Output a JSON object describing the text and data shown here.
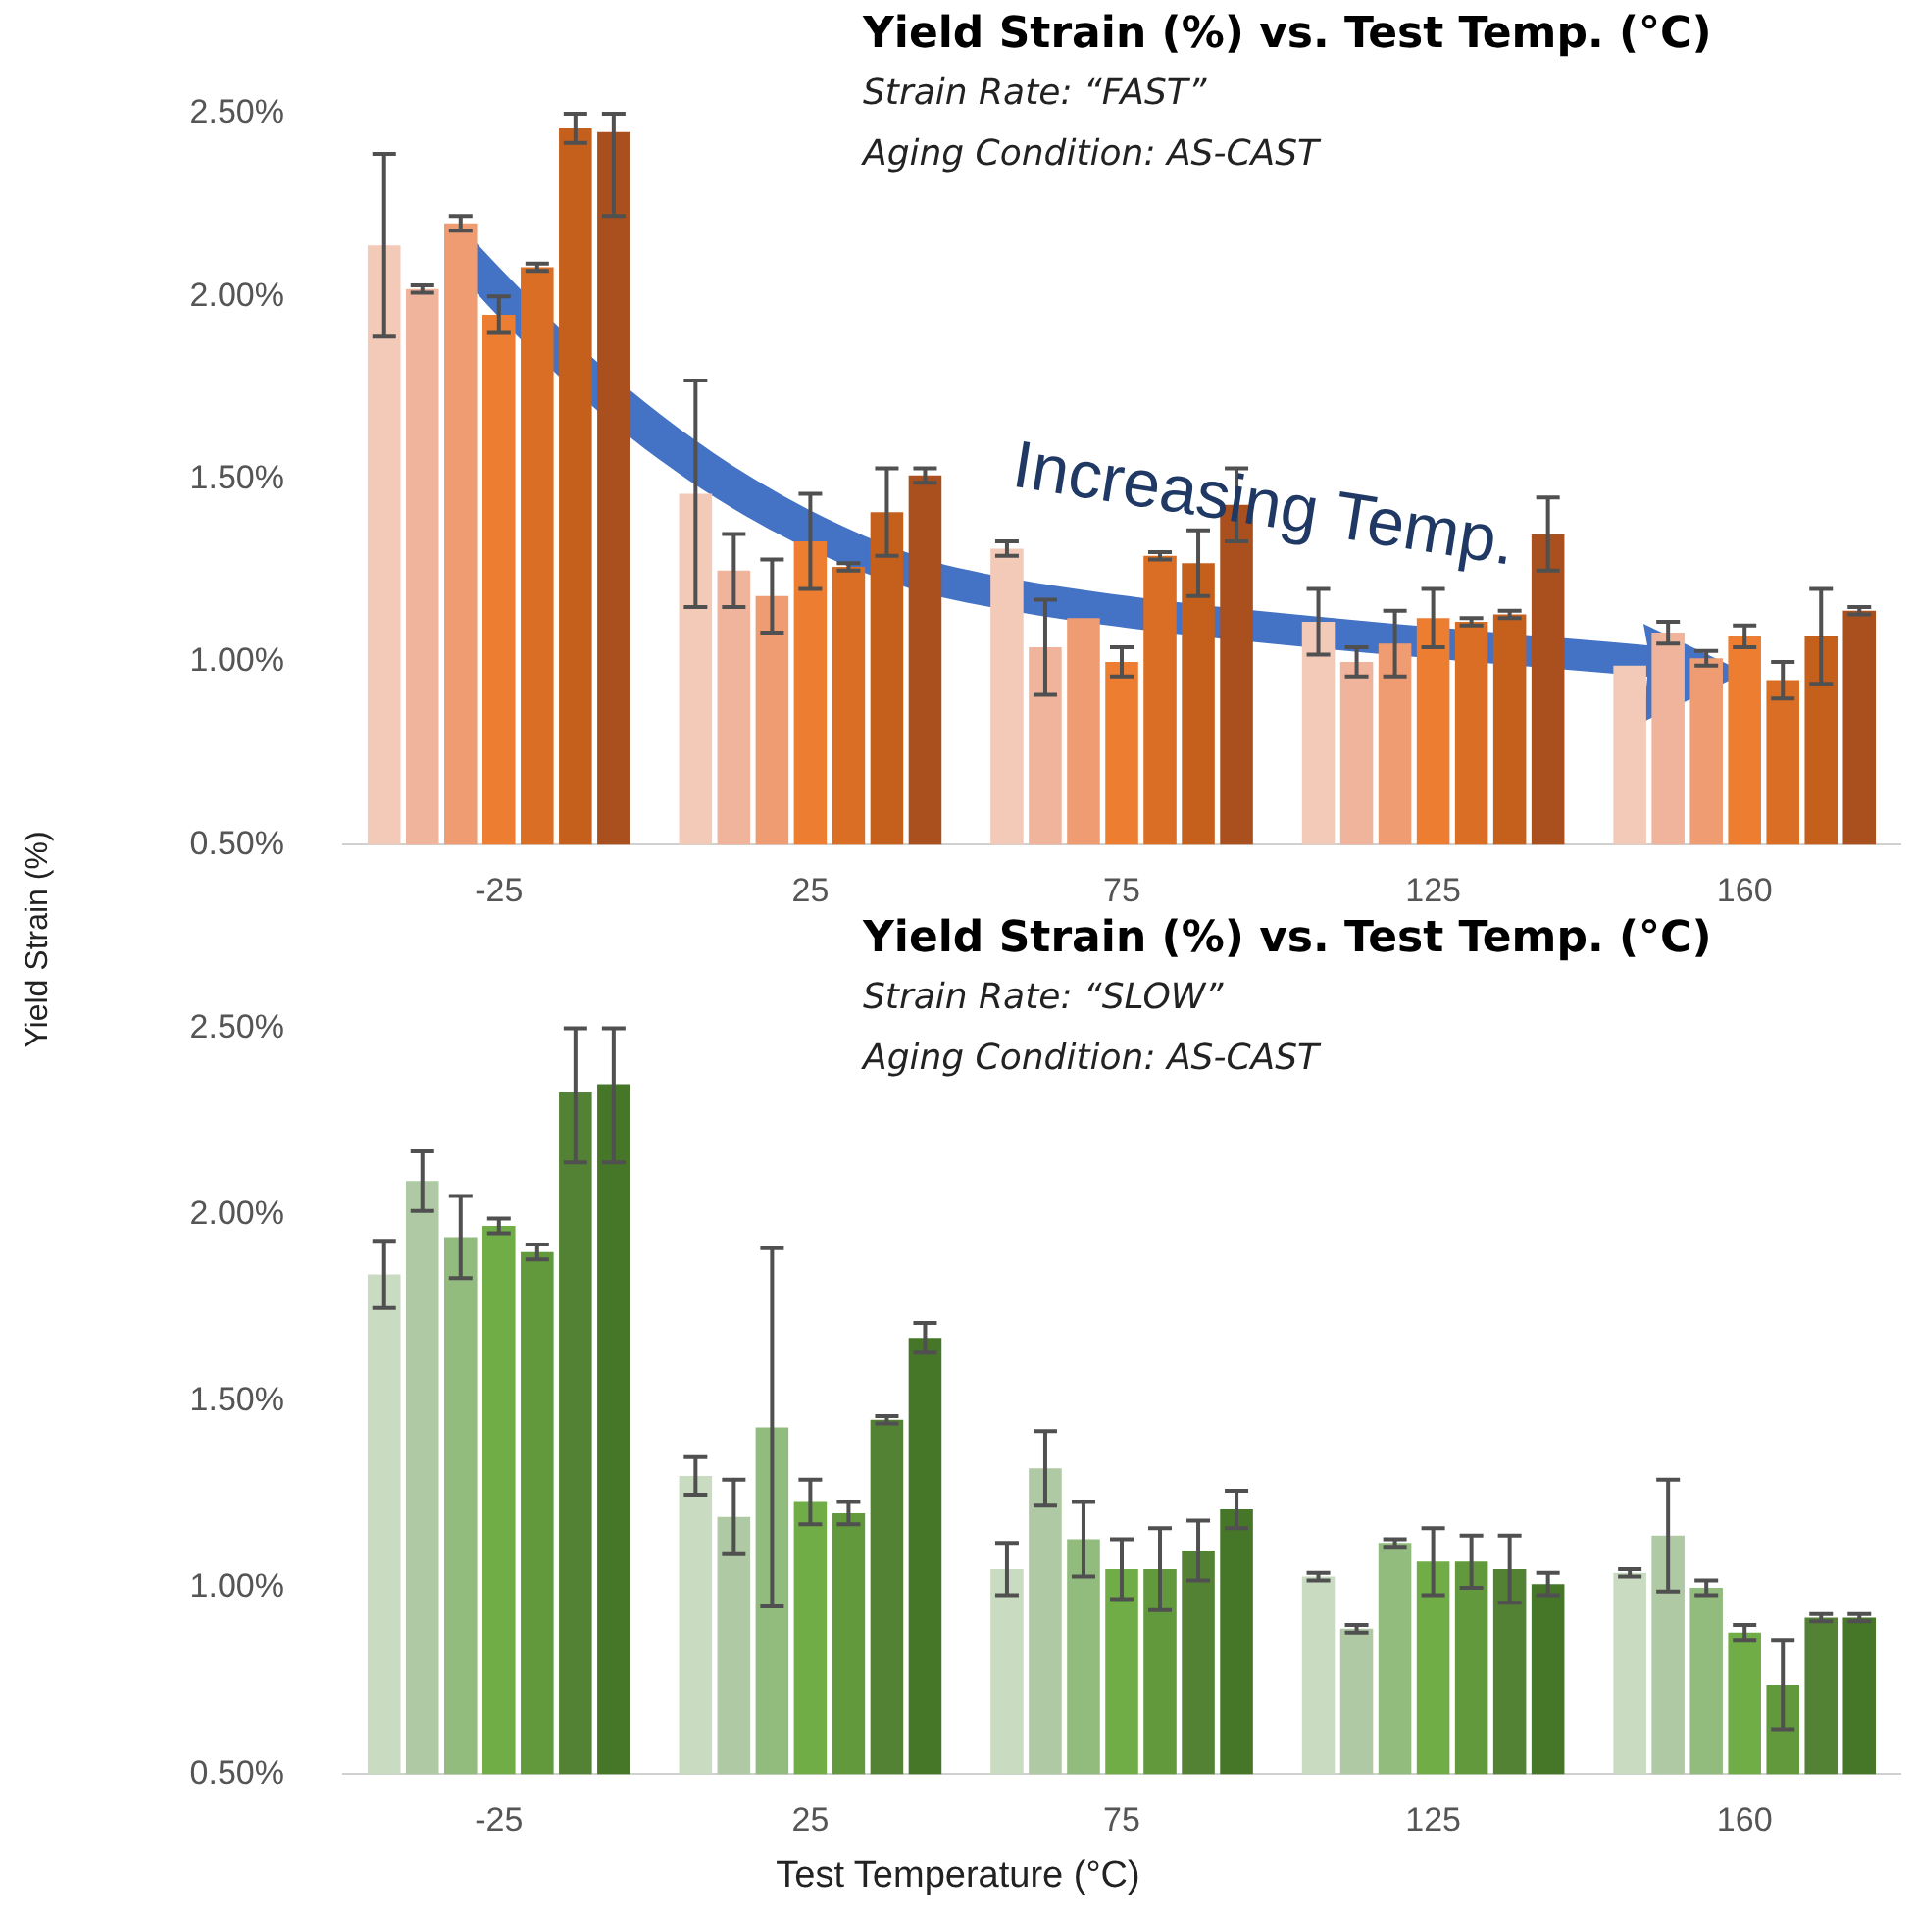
{
  "chart_data": [
    {
      "type": "bar",
      "title": "Yield Strain (%) vs. Test Temp. (°C)",
      "subtitle": "Strain Rate: “FAST”",
      "ylabel": "Yield Strain (%)",
      "annotations": [
        "Aging Condition: AS-CAST",
        "Increasing Temp."
      ],
      "categories": [
        "-25",
        "25",
        "75",
        "125",
        "160"
      ],
      "ylim": [
        0.5,
        2.5
      ],
      "yticks": [
        {
          "value": 0.5,
          "label": "0.50%"
        },
        {
          "value": 1,
          "label": "1.00%"
        },
        {
          "value": 1.5,
          "label": "1.50%"
        },
        {
          "value": 2,
          "label": "2.00%"
        },
        {
          "value": 2.5,
          "label": "2.50%"
        }
      ],
      "grid": false,
      "legend": false,
      "series": [
        {
          "color": "#f3c9b8",
          "values": [
            2.14,
            1.46,
            1.31,
            1.11,
            0.99
          ],
          "errors": [
            0.25,
            0.31,
            0.02,
            0.09,
            null
          ]
        },
        {
          "color": "#f0b49d",
          "values": [
            2.02,
            1.25,
            1.04,
            1.0,
            1.08
          ],
          "errors": [
            0.01,
            0.1,
            0.13,
            0.04,
            0.03
          ]
        },
        {
          "color": "#ef9c72",
          "values": [
            2.2,
            1.18,
            1.12,
            1.05,
            1.01
          ],
          "errors": [
            0.02,
            0.1,
            null,
            0.09,
            0.02
          ]
        },
        {
          "color": "#ed7d31",
          "values": [
            1.95,
            1.33,
            1.0,
            1.12,
            1.07
          ],
          "errors": [
            0.05,
            0.13,
            0.04,
            0.08,
            0.03
          ]
        },
        {
          "color": "#db6e25",
          "values": [
            2.08,
            1.26,
            1.29,
            1.11,
            0.95
          ],
          "errors": [
            0.01,
            0.01,
            0.01,
            0.01,
            0.05
          ]
        },
        {
          "color": "#c5601c",
          "values": [
            2.46,
            1.41,
            1.27,
            1.13,
            1.07
          ],
          "errors": [
            0.04,
            0.12,
            0.09,
            0.01,
            0.13
          ]
        },
        {
          "color": "#a9501e",
          "values": [
            2.45,
            1.51,
            1.43,
            1.35,
            1.14
          ],
          "errors": [
            [
              2.22,
              2.5
            ],
            0.02,
            0.1,
            0.1,
            0.01
          ]
        }
      ]
    },
    {
      "type": "bar",
      "title": "Yield Strain (%) vs. Test Temp. (°C)",
      "subtitle": "Strain Rate: “SLOW”",
      "xlabel": "Test Temperature (°C)",
      "annotations": [
        "Aging Condition: AS-CAST"
      ],
      "categories": [
        "-25",
        "25",
        "75",
        "125",
        "160"
      ],
      "ylim": [
        0.5,
        2.5
      ],
      "yticks": [
        {
          "value": 0.5,
          "label": "0.50%"
        },
        {
          "value": 1,
          "label": "1.00%"
        },
        {
          "value": 1.5,
          "label": "1.50%"
        },
        {
          "value": 2,
          "label": "2.00%"
        },
        {
          "value": 2.5,
          "label": "2.50%"
        }
      ],
      "grid": false,
      "legend": false,
      "series": [
        {
          "color": "#c9dcc2",
          "values": [
            1.84,
            1.3,
            1.05,
            1.03,
            1.04
          ],
          "errors": [
            0.09,
            0.05,
            0.07,
            0.01,
            0.01
          ]
        },
        {
          "color": "#aec9a3",
          "values": [
            2.09,
            1.19,
            1.32,
            0.89,
            1.14
          ],
          "errors": [
            0.08,
            0.1,
            0.1,
            0.01,
            0.15
          ]
        },
        {
          "color": "#92bb7e",
          "values": [
            1.94,
            1.43,
            1.13,
            1.12,
            1.0
          ],
          "errors": [
            0.11,
            0.48,
            0.1,
            0.01,
            0.02
          ]
        },
        {
          "color": "#70ad47",
          "values": [
            1.97,
            1.23,
            1.05,
            1.07,
            0.88
          ],
          "errors": [
            0.02,
            0.06,
            0.08,
            0.09,
            0.02
          ]
        },
        {
          "color": "#62993d",
          "values": [
            1.9,
            1.2,
            1.05,
            1.07,
            0.74
          ],
          "errors": [
            0.02,
            0.03,
            0.11,
            0.07,
            0.12
          ]
        },
        {
          "color": "#548235",
          "values": [
            2.33,
            1.45,
            1.1,
            1.05,
            0.92
          ],
          "errors": [
            [
              2.14,
              2.5
            ],
            0.01,
            0.08,
            0.09,
            0.01
          ]
        },
        {
          "color": "#467728",
          "values": [
            2.35,
            1.67,
            1.21,
            1.01,
            0.92
          ],
          "errors": [
            [
              2.14,
              2.5
            ],
            0.04,
            0.05,
            0.03,
            0.01
          ]
        }
      ]
    }
  ]
}
